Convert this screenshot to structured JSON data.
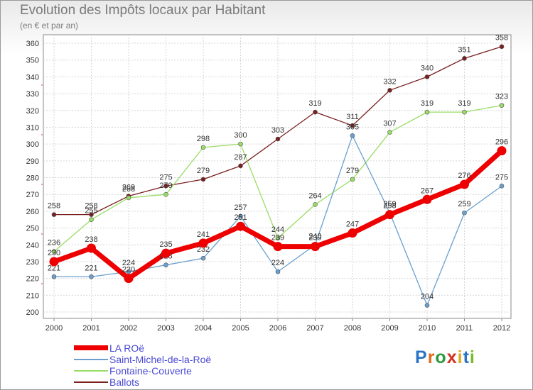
{
  "chart_data": {
    "type": "line",
    "title": "Evolution des Impôts locaux par Habitant",
    "subtitle": "(en € et par an)",
    "x": [
      "2000",
      "2001",
      "2002",
      "2003",
      "2004",
      "2005",
      "2006",
      "2007",
      "2008",
      "2009",
      "2010",
      "2011",
      "2012"
    ],
    "ylim": [
      200,
      360
    ],
    "yticks": [
      200,
      210,
      220,
      230,
      240,
      250,
      260,
      270,
      280,
      290,
      300,
      310,
      320,
      330,
      340,
      350,
      360
    ],
    "series": [
      {
        "name": "LA ROë",
        "color": "#ee0000",
        "values": [
          230,
          238,
          220,
          235,
          241,
          251,
          239,
          239,
          247,
          258,
          267,
          276,
          296
        ]
      },
      {
        "name": "Saint-Michel-de-la-Roë",
        "color": "#6a9fcf",
        "values": [
          221,
          221,
          224,
          228,
          232,
          257,
          224,
          240,
          305,
          259,
          204,
          259,
          275
        ]
      },
      {
        "name": "Fontaine-Couverte",
        "color": "#99dd66",
        "values": [
          236,
          255,
          268,
          270,
          298,
          300,
          244,
          264,
          279,
          307,
          319,
          319,
          323
        ]
      },
      {
        "name": "Ballots",
        "color": "#7a1f1f",
        "values": [
          258,
          258,
          269,
          275,
          279,
          287,
          303,
          319,
          311,
          332,
          340,
          351,
          358
        ]
      }
    ],
    "legend": [
      "LA ROë",
      "Saint-Michel-de-la-Roë",
      "Fontaine-Couverte",
      "Ballots"
    ]
  },
  "logo": {
    "text": "Proxiti"
  }
}
